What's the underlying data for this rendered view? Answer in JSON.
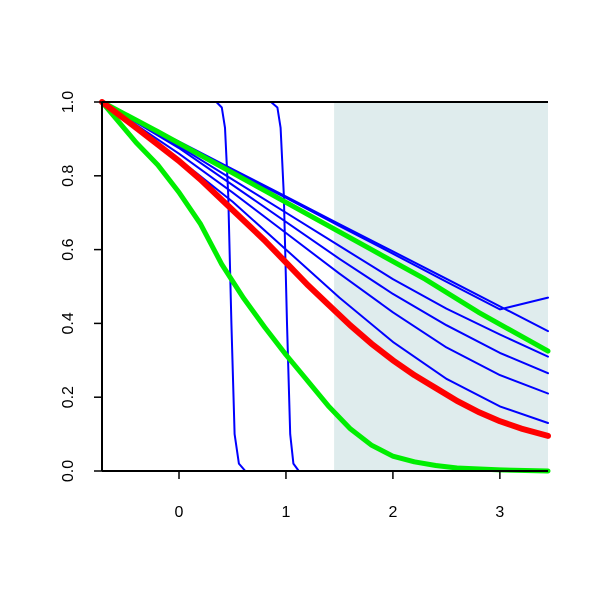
{
  "chart_data": {
    "type": "line",
    "title": "",
    "xlabel": "",
    "ylabel": "",
    "xlim": [
      -0.72,
      3.45
    ],
    "ylim": [
      0,
      1
    ],
    "x_ticks": [
      0,
      1,
      2,
      3
    ],
    "y_ticks": [
      0.0,
      0.2,
      0.4,
      0.6,
      0.8,
      1.0
    ],
    "x_tick_labels": [
      "0",
      "1",
      "2",
      "3"
    ],
    "y_tick_labels": [
      "0.0",
      "0.2",
      "0.4",
      "0.6",
      "0.8",
      "1.0"
    ],
    "grid": false,
    "legend": "none",
    "shaded_region": {
      "x_from": 1.45,
      "x_to": 3.45,
      "color": "#dfeced"
    },
    "series": [
      {
        "color": "#0000ff",
        "width": 2,
        "x": [
          -0.72,
          0.35,
          0.4,
          0.43,
          0.46,
          0.49,
          0.52,
          0.56,
          0.62,
          3.45
        ],
        "y": [
          1.0,
          1.0,
          0.985,
          0.93,
          0.75,
          0.4,
          0.1,
          0.02,
          0.0,
          0.0
        ]
      },
      {
        "color": "#0000ff",
        "width": 2,
        "x": [
          -0.72,
          0.86,
          0.92,
          0.95,
          0.98,
          1.01,
          1.04,
          1.07,
          1.12,
          3.45
        ],
        "y": [
          1.0,
          1.0,
          0.985,
          0.93,
          0.75,
          0.4,
          0.1,
          0.02,
          0.0,
          0.0
        ]
      },
      {
        "color": "#0000ff",
        "width": 2,
        "x": [
          -0.72,
          0.0,
          0.5,
          1.0,
          1.5,
          2.0,
          2.5,
          3.0,
          3.45
        ],
        "y": [
          1.0,
          0.893,
          0.818,
          0.744,
          0.669,
          0.595,
          0.521,
          0.446,
          0.379
        ]
      },
      {
        "color": "#0000ff",
        "width": 2,
        "x": [
          -0.72,
          0.0,
          0.5,
          1.0,
          1.5,
          2.0,
          2.5,
          3.0,
          3.45
        ],
        "y": [
          1.0,
          0.891,
          0.815,
          0.74,
          0.664,
          0.589,
          0.513,
          0.438,
          0.47
        ]
      },
      {
        "color": "#0000ff",
        "width": 2,
        "x": [
          -0.72,
          0.0,
          0.5,
          1.0,
          1.5,
          2.0,
          2.5,
          3.0,
          3.45
        ],
        "y": [
          1.0,
          0.88,
          0.79,
          0.7,
          0.61,
          0.52,
          0.44,
          0.37,
          0.31
        ]
      },
      {
        "color": "#0000ff",
        "width": 2,
        "x": [
          -0.72,
          0.0,
          0.5,
          1.0,
          1.5,
          2.0,
          2.5,
          3.0,
          3.45
        ],
        "y": [
          1.0,
          0.875,
          0.775,
          0.675,
          0.575,
          0.48,
          0.395,
          0.32,
          0.265
        ]
      },
      {
        "color": "#0000ff",
        "width": 2,
        "x": [
          -0.72,
          0.0,
          0.5,
          1.0,
          1.5,
          2.0,
          2.5,
          3.0,
          3.45
        ],
        "y": [
          1.0,
          0.86,
          0.755,
          0.645,
          0.535,
          0.43,
          0.335,
          0.26,
          0.21
        ]
      },
      {
        "color": "#0000ff",
        "width": 2,
        "x": [
          -0.72,
          0.0,
          0.5,
          1.0,
          1.5,
          2.0,
          2.5,
          3.0,
          3.45
        ],
        "y": [
          1.0,
          0.845,
          0.73,
          0.6,
          0.47,
          0.35,
          0.25,
          0.175,
          0.13
        ]
      },
      {
        "color": "#00ee00",
        "width": 5,
        "x": [
          -0.72,
          -0.2,
          0.3,
          0.8,
          1.3,
          1.8,
          2.3,
          2.8,
          3.45
        ],
        "y": [
          1.0,
          0.92,
          0.84,
          0.76,
          0.68,
          0.6,
          0.52,
          0.43,
          0.325
        ]
      },
      {
        "color": "#00ee00",
        "width": 5,
        "x": [
          -0.72,
          -0.4,
          -0.2,
          0.0,
          0.2,
          0.4,
          0.6,
          0.8,
          1.0,
          1.2,
          1.4,
          1.6,
          1.8,
          2.0,
          2.2,
          2.4,
          2.6,
          3.0,
          3.45
        ],
        "y": [
          1.0,
          0.89,
          0.83,
          0.755,
          0.67,
          0.56,
          0.47,
          0.39,
          0.315,
          0.245,
          0.175,
          0.115,
          0.07,
          0.04,
          0.025,
          0.015,
          0.008,
          0.003,
          0.0
        ]
      },
      {
        "color": "#ff0000",
        "width": 6,
        "x": [
          -0.72,
          -0.4,
          -0.2,
          0.0,
          0.2,
          0.4,
          0.6,
          0.8,
          1.0,
          1.2,
          1.4,
          1.6,
          1.8,
          2.0,
          2.2,
          2.4,
          2.6,
          2.8,
          3.0,
          3.2,
          3.45
        ],
        "y": [
          1.0,
          0.93,
          0.885,
          0.84,
          0.79,
          0.735,
          0.68,
          0.625,
          0.565,
          0.505,
          0.45,
          0.395,
          0.345,
          0.3,
          0.26,
          0.225,
          0.19,
          0.16,
          0.135,
          0.115,
          0.095
        ]
      }
    ]
  }
}
